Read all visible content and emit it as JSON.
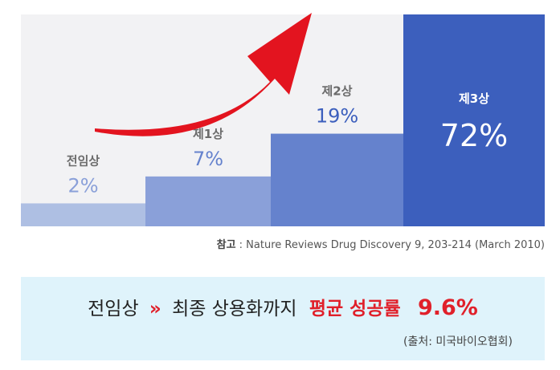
{
  "chart_data": {
    "type": "bar",
    "categories": [
      "전임상",
      "제1상",
      "제2상",
      "제3상"
    ],
    "values": [
      2,
      7,
      19,
      72
    ],
    "value_unit": "%",
    "value_labels": [
      "2%",
      "7%",
      "19%",
      "72%"
    ],
    "colors": [
      "#aebfe3",
      "#8aa0d9",
      "#6582cd",
      "#3c5fbd"
    ],
    "trend_arrow_color": "#e3141f"
  },
  "reference": {
    "label": "참고",
    "text": ": Nature Reviews Drug Discovery 9, 203-214 (March 2010)"
  },
  "summary": {
    "from": "전임상",
    "arrows": "»",
    "to": "최종 상용화까지",
    "highlight": "평균 성공률",
    "value": "9.6%",
    "source": "(출처: 미국바이오협회)"
  }
}
